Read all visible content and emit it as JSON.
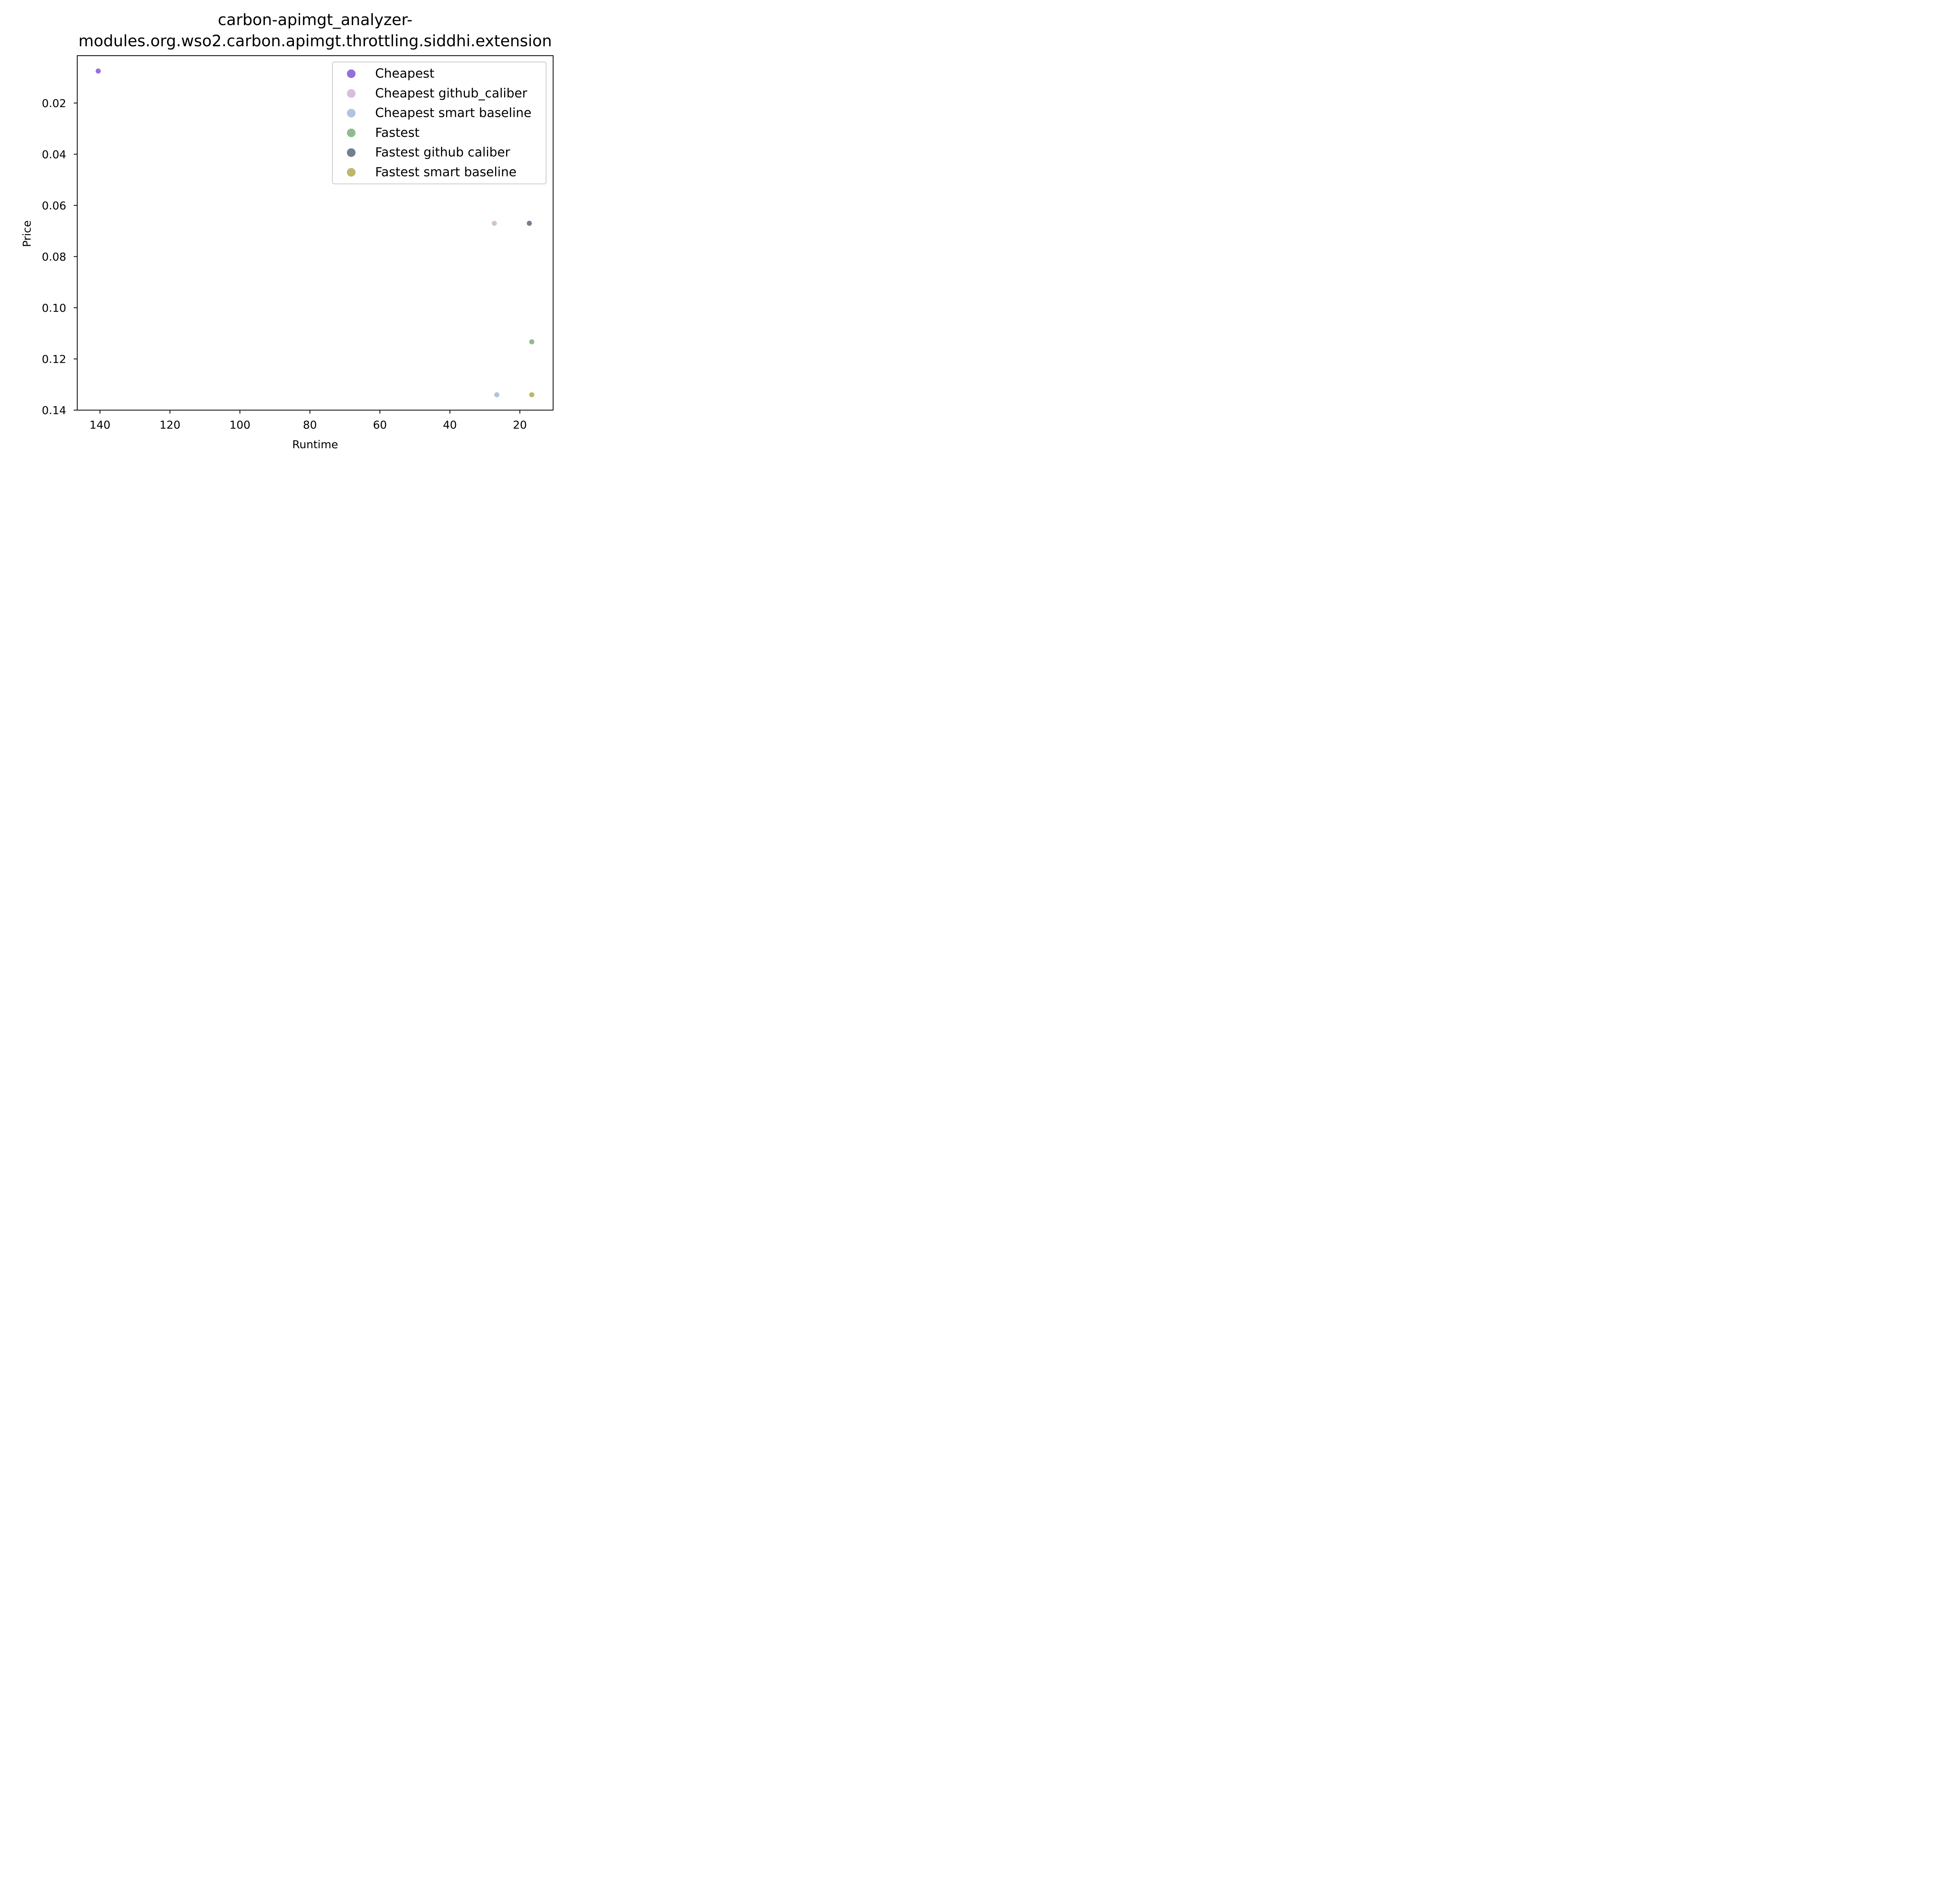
{
  "chart_data": {
    "type": "scatter",
    "title_lines": [
      "carbon-apimgt_analyzer-",
      "modules.org.wso2.carbon.apimgt.throttling.siddhi.extension"
    ],
    "xlabel": "Runtime",
    "ylabel": "Price",
    "xlim": [
      146.5,
      10.5
    ],
    "ylim": [
      0.14,
      0.0015
    ],
    "x_inverted": true,
    "y_inverted": true,
    "xticks": [
      140,
      120,
      100,
      80,
      60,
      40,
      20
    ],
    "yticks": [
      0.02,
      0.04,
      0.06,
      0.08,
      0.1,
      0.12,
      0.14
    ],
    "ytick_labels": [
      "0.02",
      "0.04",
      "0.06",
      "0.08",
      "0.10",
      "0.12",
      "0.14"
    ],
    "grid": false,
    "legend_position": "upper right",
    "series": [
      {
        "name": "Cheapest",
        "color": "#9370DB",
        "points": [
          [
            140.5,
            0.0075
          ]
        ]
      },
      {
        "name": "Cheapest github_caliber",
        "color": "#D8BFD8",
        "points": [
          [
            27.3,
            0.067
          ]
        ]
      },
      {
        "name": "Cheapest smart baseline",
        "color": "#B0C4DE",
        "points": [
          [
            26.6,
            0.134
          ]
        ]
      },
      {
        "name": "Fastest",
        "color": "#8FBC8F",
        "points": [
          [
            16.6,
            0.1133
          ]
        ]
      },
      {
        "name": "Fastest github caliber",
        "color": "#708090",
        "points": [
          [
            17.3,
            0.067
          ]
        ]
      },
      {
        "name": "Fastest smart baseline",
        "color": "#BDB76B",
        "points": [
          [
            16.6,
            0.134
          ]
        ]
      }
    ]
  }
}
